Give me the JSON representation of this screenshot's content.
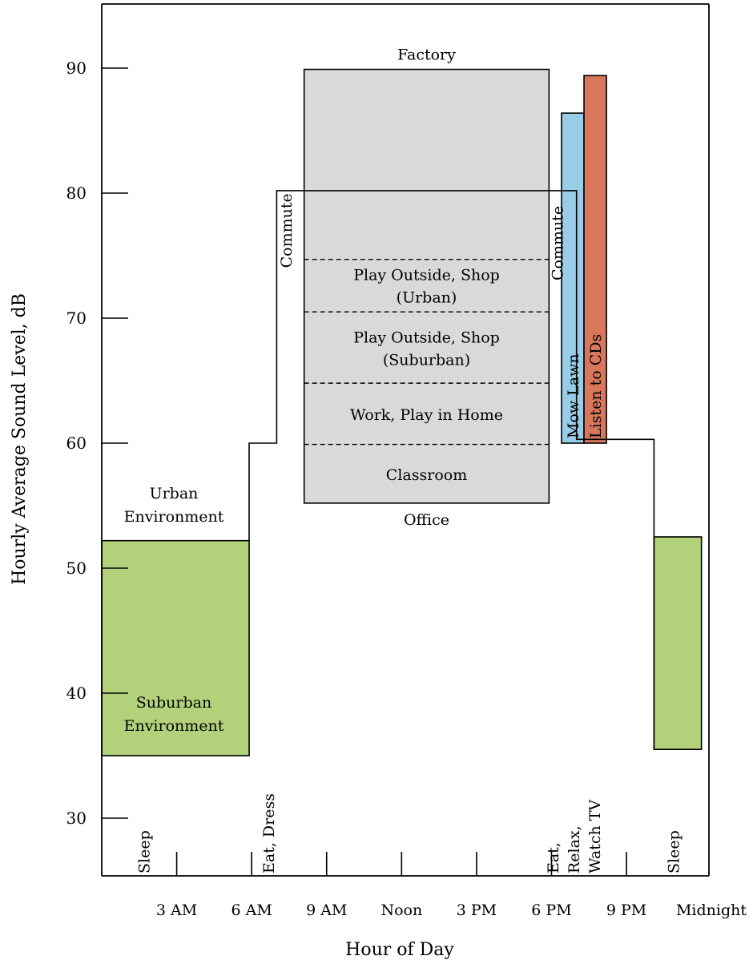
{
  "chart_data": {
    "type": "area",
    "xlabel": "Hour of Day",
    "ylabel": "Hourly Average Sound Level, dB",
    "x_tick_labels": [
      "3 AM",
      "6 AM",
      "9 AM",
      "Noon",
      "3 PM",
      "6 PM",
      "9 PM",
      "Midnight"
    ],
    "y_ticks": [
      30,
      40,
      50,
      60,
      70,
      80,
      90
    ],
    "ylim": [
      26,
      95
    ],
    "xlim_hours": [
      0,
      24.3
    ],
    "activities": [
      "Sleep",
      "Eat, Dress",
      "Eat, Relax, Watch TV",
      "Sleep"
    ],
    "activity_hours": [
      1.9,
      6.9,
      19.1,
      23.1
    ],
    "profile": {
      "name": "Urban Environment",
      "points": [
        [
          5.9,
          52.2
        ],
        [
          5.9,
          60
        ],
        [
          7.0,
          60
        ],
        [
          7.0,
          80.2
        ],
        [
          8.1,
          80.2
        ],
        [
          17.9,
          80.2
        ],
        [
          17.9,
          80.2
        ],
        [
          19.0,
          80.2
        ],
        [
          19.0,
          60.3
        ],
        [
          22.1,
          60.3
        ],
        [
          22.1,
          35.5
        ]
      ]
    },
    "green_blocks": [
      {
        "label": "Suburban Environment",
        "x": [
          0,
          5.9
        ],
        "y": [
          35,
          52.2
        ]
      },
      {
        "label": "",
        "x": [
          22.1,
          24.0
        ],
        "y": [
          35.5,
          52.5
        ]
      }
    ],
    "commute_labels": [
      {
        "label": "Commute",
        "hour": 7.6,
        "db": 77
      },
      {
        "label": "Commute",
        "hour": 18.45,
        "db": 76
      }
    ],
    "work_box": {
      "x": [
        8.1,
        17.9
      ],
      "y": [
        55.2,
        89.9
      ],
      "top_label": "Factory",
      "bottom_label": "Office",
      "dividers_db": [
        74.7,
        70.5,
        64.8,
        59.9
      ],
      "zones": [
        {
          "lines": [
            "Play Outside, Shop",
            "(Urban)"
          ],
          "db": 72.6
        },
        {
          "lines": [
            "Play Outside, Shop",
            "(Suburban)"
          ],
          "db": 67.6
        },
        {
          "lines": [
            "Work, Play in Home"
          ],
          "db": 62.3
        },
        {
          "lines": [
            "Classroom"
          ],
          "db": 57.5
        }
      ]
    },
    "bars": [
      {
        "name": "Mow Lawn",
        "x": [
          18.4,
          19.3
        ],
        "y": [
          60,
          86.4
        ],
        "color": "#99cce6"
      },
      {
        "name": "Listen to CDs",
        "x": [
          19.3,
          20.2
        ],
        "y": [
          60,
          89.4
        ],
        "color": "#d9775c"
      }
    ],
    "colors": {
      "green": "#b3d17a",
      "work_box": "#d9d9d9",
      "axis": "#000000"
    }
  }
}
